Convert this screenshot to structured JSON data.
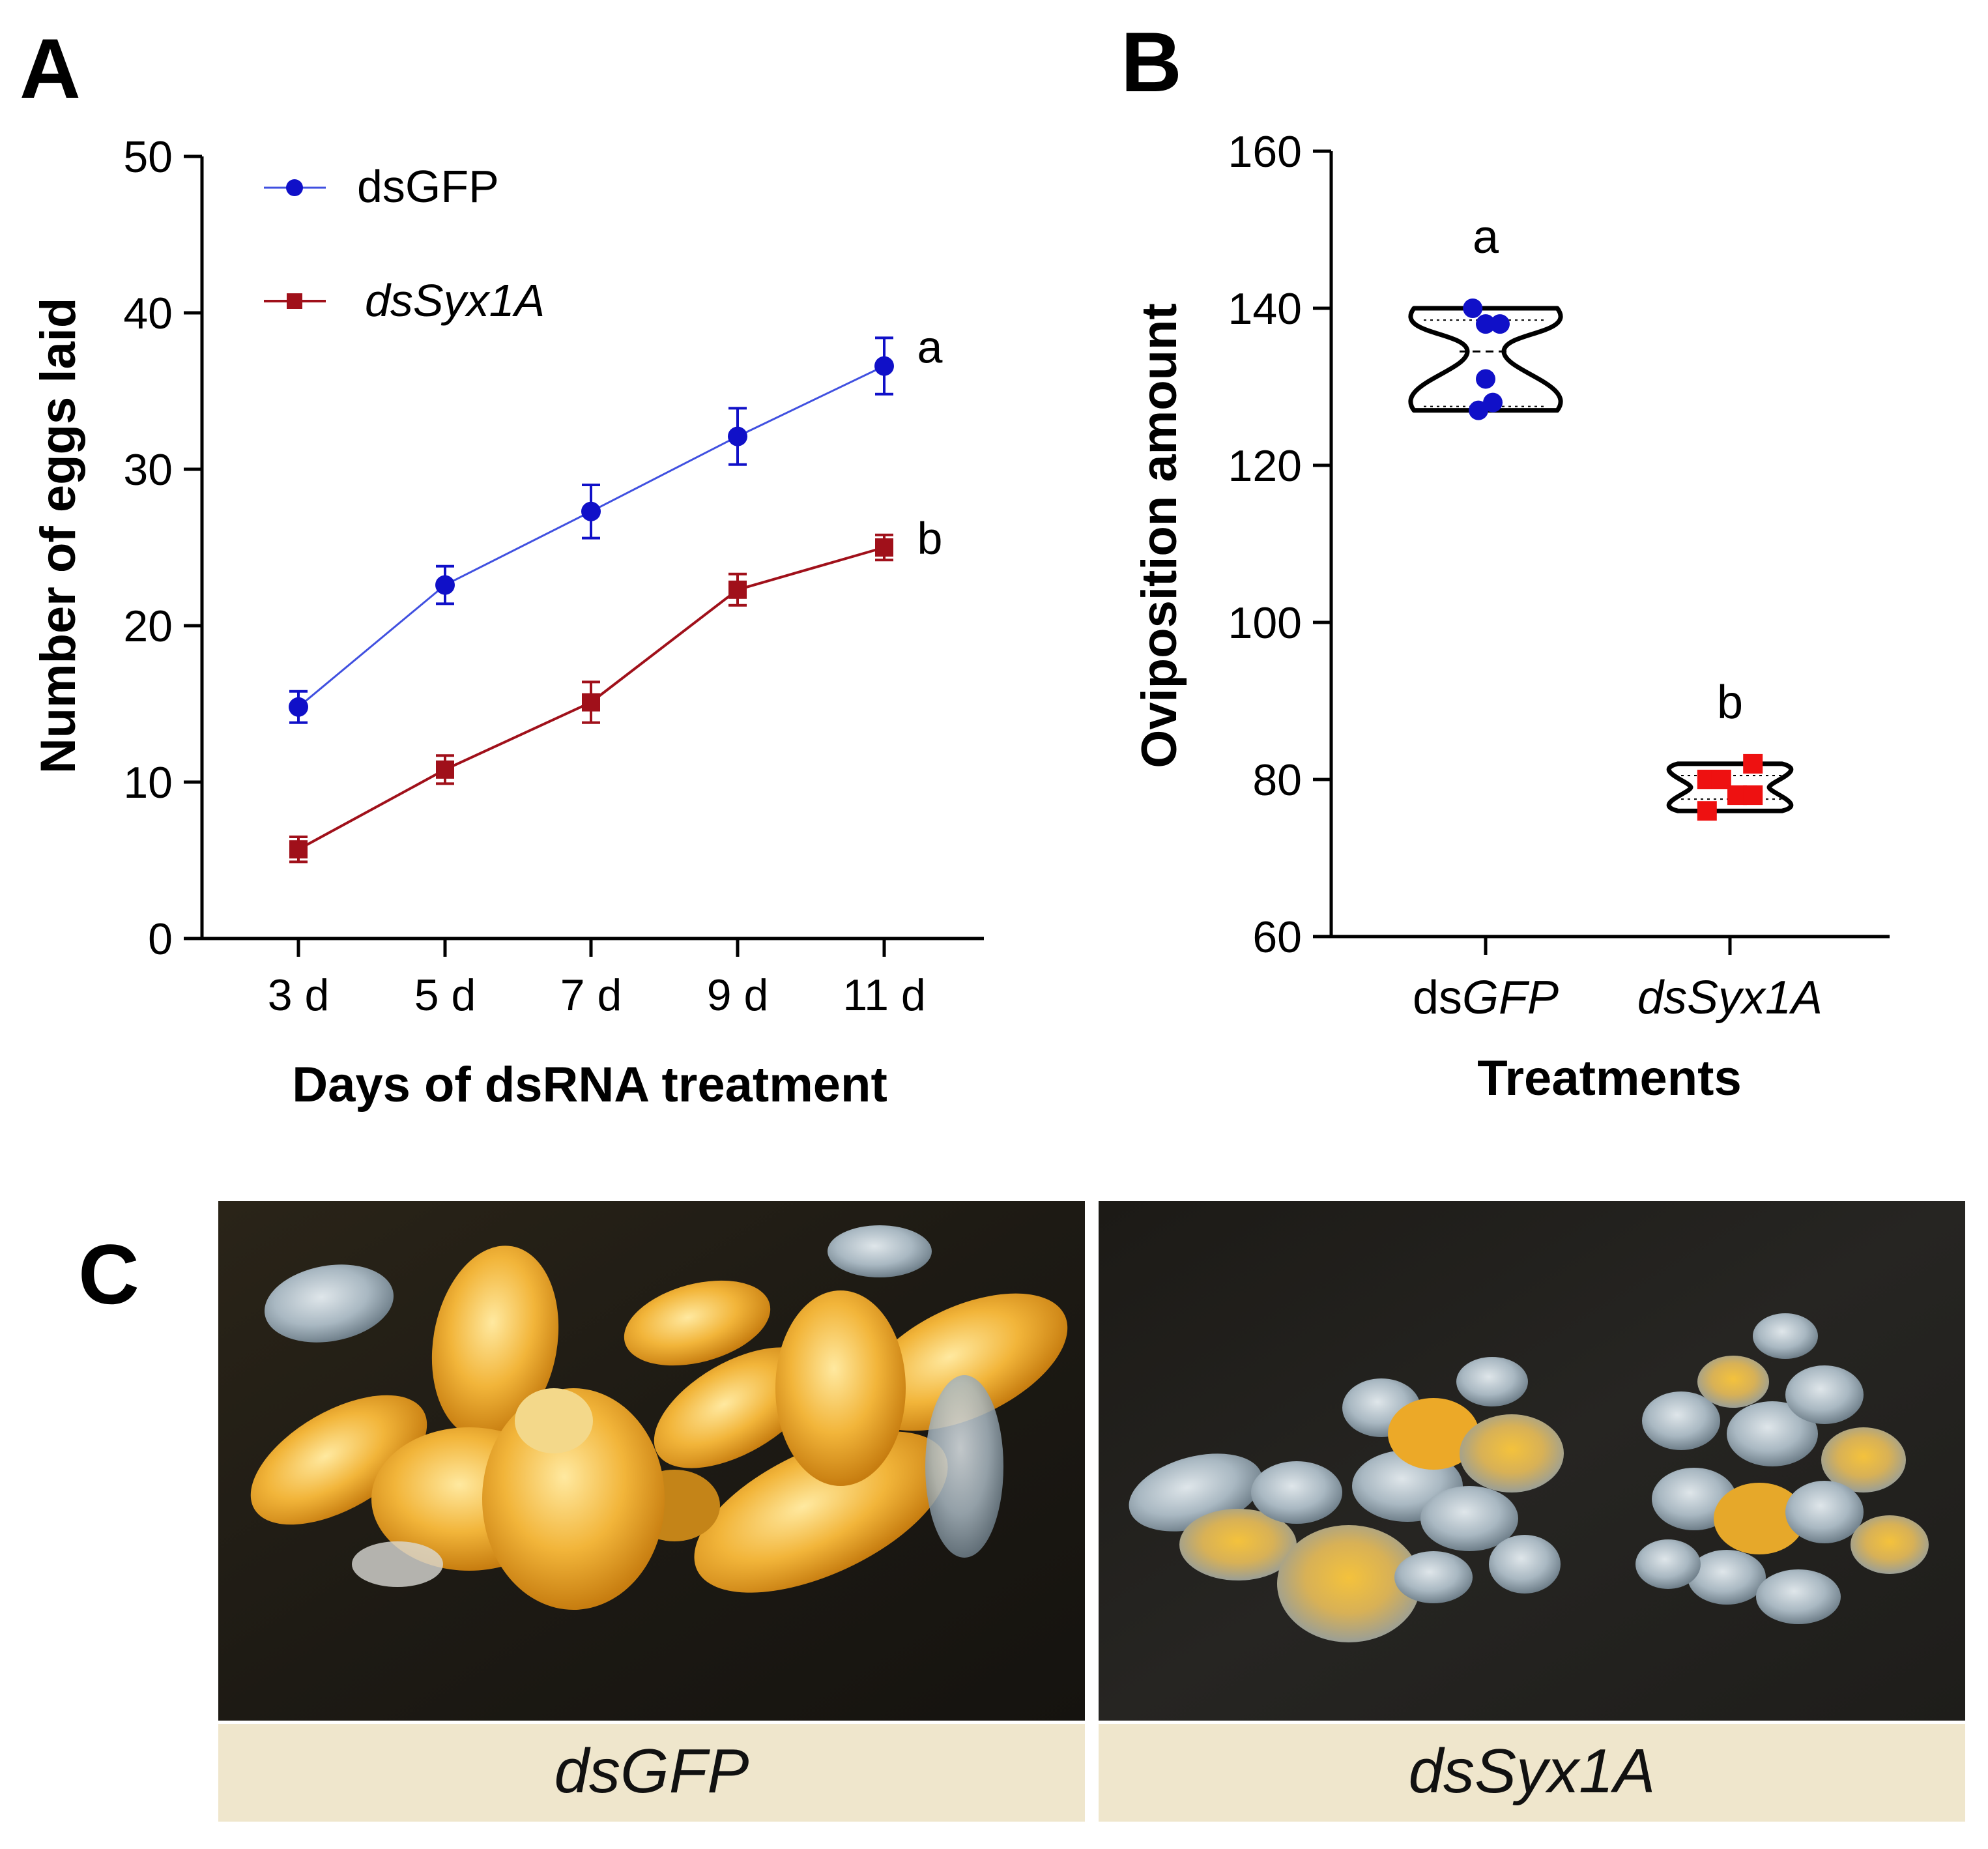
{
  "panels": {
    "a": {
      "letter": "A"
    },
    "b": {
      "letter": "B"
    },
    "c": {
      "letter": "C"
    }
  },
  "chart_data": [
    {
      "type": "line",
      "panel": "A",
      "title": "",
      "xlabel": "Days of dsRNA treatment",
      "ylabel": "Number of eggs laid",
      "categories": [
        "3 d",
        "5 d",
        "7 d",
        "9 d",
        "11 d"
      ],
      "ylim": [
        0,
        50
      ],
      "yticks": [
        "0",
        "10",
        "20",
        "30",
        "40",
        "50"
      ],
      "grid": false,
      "legend_placement": "top-left",
      "series": [
        {
          "name": "dsGFP",
          "color": "#1010c8",
          "marker": "circle",
          "values": [
            14.8,
            22.6,
            27.3,
            32.1,
            36.6
          ],
          "errors": [
            1.0,
            1.2,
            1.7,
            1.8,
            1.8
          ],
          "significance": "a"
        },
        {
          "name": "dsSyx1A",
          "color": "#a0101a",
          "marker": "square",
          "values": [
            5.7,
            10.8,
            15.1,
            22.3,
            25.0
          ],
          "errors": [
            0.8,
            0.9,
            1.3,
            1.0,
            0.8
          ],
          "significance": "b"
        }
      ]
    },
    {
      "type": "scatter",
      "panel": "B",
      "subtype": "violin",
      "title": "",
      "xlabel": "Treatments",
      "ylabel": "Oviposition amount",
      "ylim": [
        60,
        160
      ],
      "yticks": [
        "60",
        "80",
        "100",
        "120",
        "140",
        "160"
      ],
      "grid": false,
      "groups": [
        {
          "prefix": "ds",
          "italic": "GFP",
          "color": "#1010c8",
          "marker": "circle",
          "points": [
            {
              "dx": -0.18,
              "y": 140
            },
            {
              "dx": 0.0,
              "y": 138
            },
            {
              "dx": 0.2,
              "y": 138
            },
            {
              "dx": 0.0,
              "y": 131
            },
            {
              "dx": 0.1,
              "y": 128
            },
            {
              "dx": -0.1,
              "y": 127
            }
          ],
          "median": 134.5,
          "q1": 127.5,
          "q3": 138.5,
          "min": 127,
          "max": 140,
          "significance": "a"
        },
        {
          "prefix": "",
          "italic": "dsSyx1A",
          "color": "#ee1111",
          "marker": "square",
          "points": [
            {
              "dx": -0.32,
              "y": 80
            },
            {
              "dx": -0.12,
              "y": 80
            },
            {
              "dx": 0.32,
              "y": 82
            },
            {
              "dx": 0.1,
              "y": 78
            },
            {
              "dx": 0.32,
              "y": 78
            },
            {
              "dx": -0.32,
              "y": 76
            }
          ],
          "median": 79,
          "q1": 77.5,
          "q3": 80.5,
          "min": 76,
          "max": 82,
          "significance": "b"
        }
      ]
    }
  ],
  "photos": {
    "left_caption": "dsGFP",
    "right_caption": "dsSyx1A"
  }
}
